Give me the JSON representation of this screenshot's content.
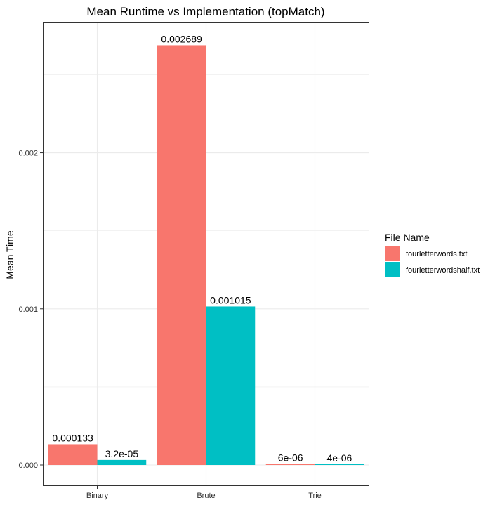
{
  "chart_data": {
    "type": "bar",
    "title": "Mean Runtime vs Implementation (topMatch)",
    "xlabel": "",
    "ylabel": "Mean Time",
    "categories": [
      "Binary",
      "Brute",
      "Trie"
    ],
    "series": [
      {
        "name": "fourletterwords.txt",
        "values": [
          0.000133,
          0.002689,
          6e-06
        ],
        "labels": [
          "0.000133",
          "0.002689",
          "6e-06"
        ],
        "color": "#F8766D"
      },
      {
        "name": "fourletterwordshalf.txt",
        "values": [
          3.2e-05,
          0.001015,
          4e-06
        ],
        "labels": [
          "3.2e-05",
          "0.001015",
          "4e-06"
        ],
        "color": "#00BFC4"
      }
    ],
    "ylim": [
      -0.000135,
      0.002835
    ],
    "yticks": [
      0,
      0.001,
      0.002
    ],
    "ytick_labels": [
      "0.000",
      "0.001",
      "0.002"
    ],
    "legend": {
      "title": "File Name",
      "position": "right"
    },
    "grid": true
  }
}
